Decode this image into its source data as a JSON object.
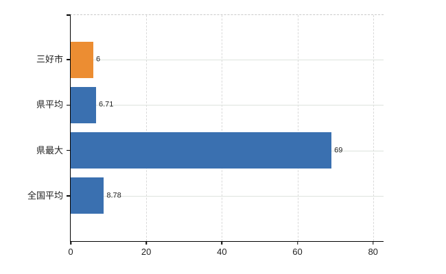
{
  "chart_data": {
    "type": "bar",
    "orientation": "horizontal",
    "title": "",
    "xlabel": "",
    "ylabel": "",
    "categories": [
      "三好市",
      "県平均",
      "県最大",
      "全国平均"
    ],
    "values": [
      6,
      6.71,
      69,
      8.78
    ],
    "value_labels": [
      "6",
      "6.71",
      "69",
      "8.78"
    ],
    "bar_colors": [
      "#ec8d32",
      "#3a70b0",
      "#3a70b0",
      "#3a70b0"
    ],
    "xticks": [
      0,
      20,
      40,
      60,
      80
    ],
    "xtick_labels": [
      "0",
      "20",
      "40",
      "60",
      "80"
    ],
    "xlim": [
      0,
      82.6
    ],
    "grid": {
      "vertical_style": "dashed",
      "horizontal_style": "solid"
    },
    "legend_shown": false,
    "colors": {
      "highlight_bar": "#ec8d32",
      "default_bar": "#3a70b0",
      "axis": "#000000",
      "text": "#1f1f1f",
      "gridline_vertical": "#d9d9d9",
      "gridline_horizontal": "#dde3dd",
      "plot_top_border": "#c9c9c9",
      "background": "#ffffff"
    }
  }
}
